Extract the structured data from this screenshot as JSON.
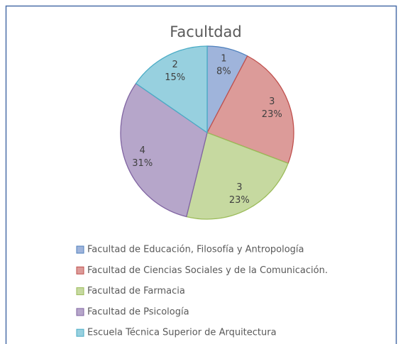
{
  "chart_data": {
    "type": "pie",
    "title": "Facultdad",
    "categories": [
      "Facultad  de Educación, Filosofía  y Antropología",
      "Facultad de Ciencias Sociales y de la Comunicación.",
      "Facultad de Farmacia",
      "Facultad de Psicología",
      "Escuela Técnica Superior de Arquitectura"
    ],
    "values": [
      1,
      3,
      3,
      4,
      2
    ],
    "percentages": [
      8,
      23,
      23,
      31,
      15
    ],
    "percentage_labels": [
      "8%",
      "23%",
      "23%",
      "31%",
      "15%"
    ],
    "colors": [
      "#9fb4db",
      "#dc9b99",
      "#c6d9a0",
      "#b6a6ca",
      "#97d0df"
    ],
    "edge_colors": [
      "#4f81bd",
      "#c0504d",
      "#9bbb59",
      "#8064a2",
      "#4bacc6"
    ],
    "legend": "bottom"
  }
}
